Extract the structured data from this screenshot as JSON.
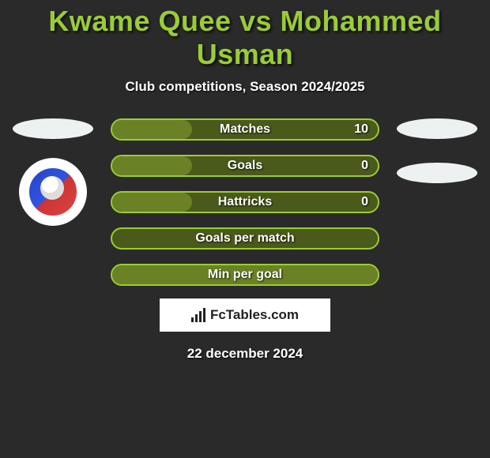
{
  "title": "Kwame Quee vs Mohammed Usman",
  "subtitle": "Club competitions, Season 2024/2025",
  "date": "22 december 2024",
  "brand": "FcTables.com",
  "colors": {
    "accent": "#9acd32",
    "bar_bg": "#4a5a1a",
    "bar_fill": "#6a8225",
    "background": "#2a2a2a",
    "ellipse": "#eef1f2"
  },
  "left_side": {
    "show_ellipse": true,
    "show_club_badge": true
  },
  "right_side": {
    "ellipse_count": 2
  },
  "chart": {
    "type": "bar",
    "bars": [
      {
        "label": "Matches",
        "right_value": "10",
        "fill_pct": 30
      },
      {
        "label": "Goals",
        "right_value": "0",
        "fill_pct": 30
      },
      {
        "label": "Hattricks",
        "right_value": "0",
        "fill_pct": 30
      },
      {
        "label": "Goals per match",
        "right_value": "",
        "fill_pct": 0
      },
      {
        "label": "Min per goal",
        "right_value": "",
        "fill_pct": 100
      }
    ]
  }
}
